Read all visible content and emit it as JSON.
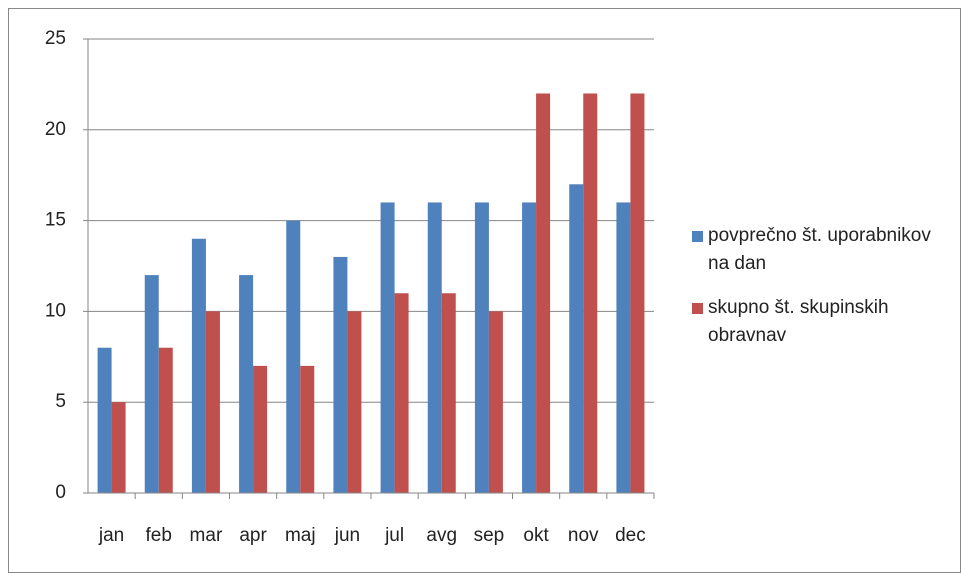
{
  "chart_data": {
    "type": "bar",
    "categories": [
      "jan",
      "feb",
      "mar",
      "apr",
      "maj",
      "jun",
      "jul",
      "avg",
      "sep",
      "okt",
      "nov",
      "dec"
    ],
    "series": [
      {
        "name": "povprečno št. uporabnikov na dan",
        "color": "#4f81bd",
        "values": [
          8,
          12,
          14,
          12,
          15,
          13,
          16,
          16,
          16,
          16,
          17,
          16
        ]
      },
      {
        "name": "skupno št. skupinskih obravnav",
        "color": "#c0504d",
        "values": [
          5,
          8,
          10,
          7,
          7,
          10,
          11,
          11,
          10,
          22,
          22,
          22
        ]
      }
    ],
    "ylim": [
      0,
      25
    ],
    "yticks": [
      0,
      5,
      10,
      15,
      20,
      25
    ],
    "grid": true,
    "legend": "right"
  }
}
